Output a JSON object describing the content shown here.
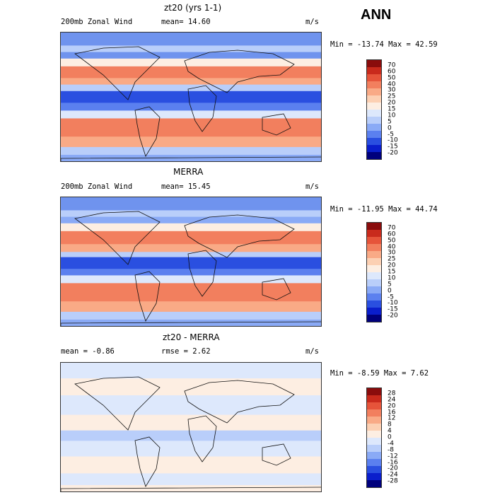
{
  "header": {
    "season": "ANN"
  },
  "colormap_wind": [
    "#00007c",
    "#0a1ecc",
    "#2a4fe0",
    "#5b80ef",
    "#8aaaf6",
    "#b9cefa",
    "#dde8fc",
    "#fdeee2",
    "#fcd0b3",
    "#f9aa86",
    "#f27f5e",
    "#e6543a",
    "#c92a1c",
    "#8a0c0c"
  ],
  "colormap_diff": [
    "#00007c",
    "#0a1ecc",
    "#2a4fe0",
    "#5b80ef",
    "#8aaaf6",
    "#b9cefa",
    "#dde8fc",
    "#fdeee2",
    "#fcd0b3",
    "#f9aa86",
    "#f27f5e",
    "#e6543a",
    "#c92a1c",
    "#8a0c0c"
  ],
  "panels": [
    {
      "title": "zt20 (yrs 1-1)",
      "left_label": "200mb Zonal Wind",
      "mid_label": "mean=  14.60",
      "units": "m/s",
      "minmax": "Min = -13.74 Max =  42.59",
      "levels": [
        "70",
        "60",
        "50",
        "40",
        "30",
        "25",
        "20",
        "15",
        "10",
        "5",
        "0",
        "-5",
        "-10",
        "-15",
        "-20"
      ],
      "bands": [
        [
          "#6f93ee",
          0.0
        ],
        [
          "#b9cefa",
          0.1
        ],
        [
          "#6f93ee",
          0.15
        ],
        [
          "#fdeee2",
          0.2
        ],
        [
          "#f27f5e",
          0.26
        ],
        [
          "#f9aa86",
          0.35
        ],
        [
          "#b9cefa",
          0.4
        ],
        [
          "#2a4fe0",
          0.45
        ],
        [
          "#5b80ef",
          0.54
        ],
        [
          "#dde8fc",
          0.6
        ],
        [
          "#f27f5e",
          0.66
        ],
        [
          "#f9aa86",
          0.8
        ],
        [
          "#b9cefa",
          0.88
        ],
        [
          "#8aaaf6",
          0.94
        ]
      ]
    },
    {
      "title": "MERRA",
      "left_label": "200mb Zonal Wind",
      "mid_label": "mean=  15.45",
      "units": "m/s",
      "minmax": "Min = -11.95 Max =  44.74",
      "levels": [
        "70",
        "60",
        "50",
        "40",
        "30",
        "25",
        "20",
        "15",
        "10",
        "5",
        "0",
        "-5",
        "-10",
        "-15",
        "-20"
      ],
      "bands": [
        [
          "#6f93ee",
          0.0
        ],
        [
          "#b9cefa",
          0.1
        ],
        [
          "#8aaaf6",
          0.15
        ],
        [
          "#fdeee2",
          0.2
        ],
        [
          "#f27f5e",
          0.26
        ],
        [
          "#f9aa86",
          0.36
        ],
        [
          "#b9cefa",
          0.42
        ],
        [
          "#2a4fe0",
          0.46
        ],
        [
          "#5b80ef",
          0.55
        ],
        [
          "#dde8fc",
          0.6
        ],
        [
          "#f27f5e",
          0.66
        ],
        [
          "#f9aa86",
          0.8
        ],
        [
          "#b9cefa",
          0.88
        ],
        [
          "#8aaaf6",
          0.94
        ]
      ]
    },
    {
      "title": "zt20 - MERRA",
      "left_label": "mean =  -0.86",
      "mid_label": "rmse =   2.62",
      "units": "m/s",
      "minmax": "Min =  -8.59 Max =   7.62",
      "levels": [
        "28",
        "24",
        "20",
        "16",
        "12",
        "8",
        "4",
        "0",
        "-4",
        "-8",
        "-12",
        "-16",
        "-20",
        "-24",
        "-28"
      ],
      "bands": [
        [
          "#dde8fc",
          0.0
        ],
        [
          "#fdeee2",
          0.12
        ],
        [
          "#dde8fc",
          0.25
        ],
        [
          "#fdeee2",
          0.4
        ],
        [
          "#b9cefa",
          0.52
        ],
        [
          "#dde8fc",
          0.6
        ],
        [
          "#fdeee2",
          0.72
        ],
        [
          "#dde8fc",
          0.85
        ],
        [
          "#fdeee2",
          0.94
        ]
      ]
    }
  ]
}
